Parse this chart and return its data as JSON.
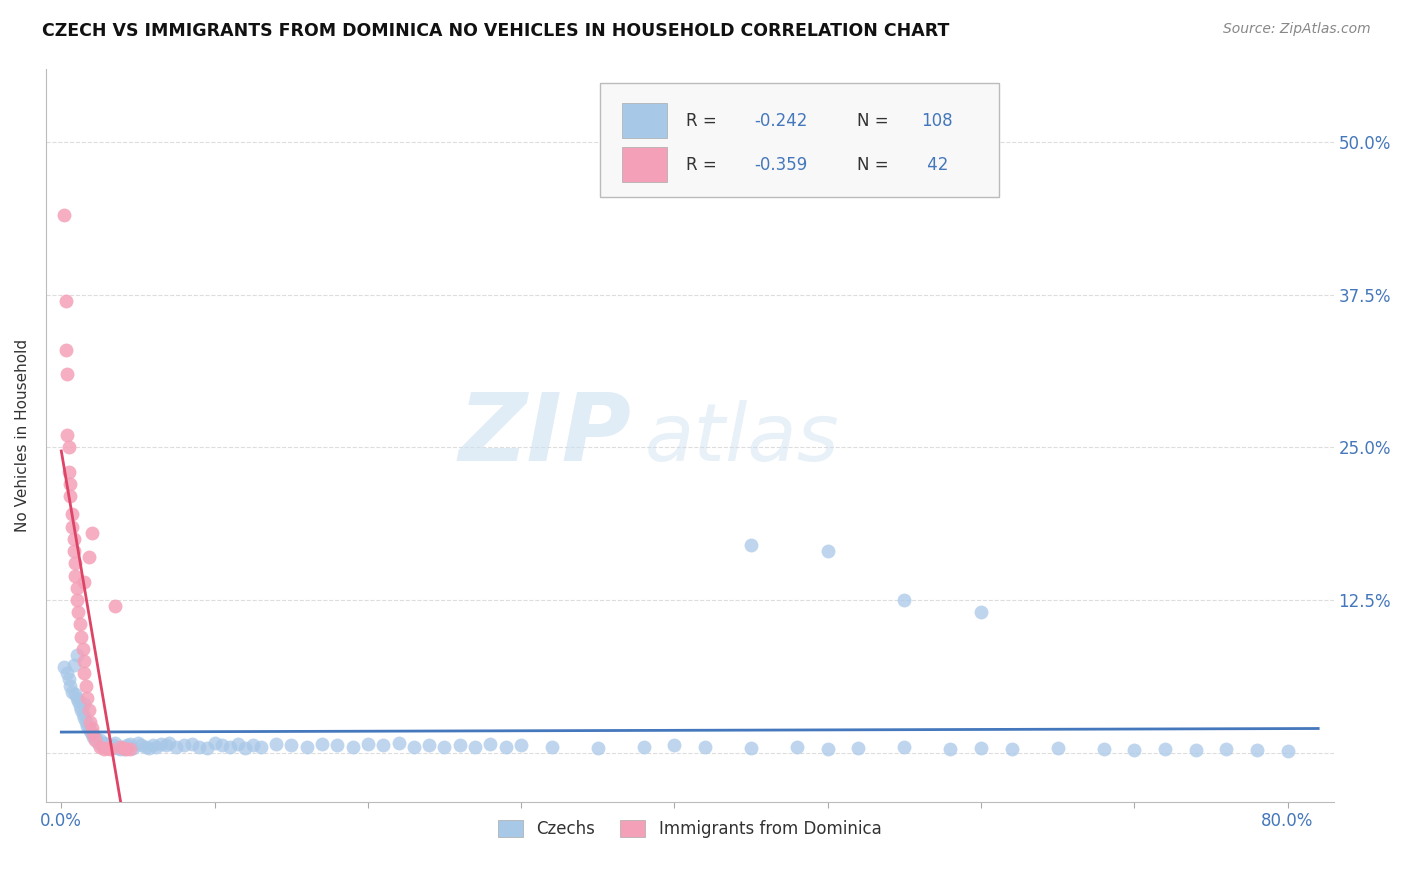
{
  "title": "CZECH VS IMMIGRANTS FROM DOMINICA NO VEHICLES IN HOUSEHOLD CORRELATION CHART",
  "source": "Source: ZipAtlas.com",
  "ylabel": "No Vehicles in Household",
  "legend_labels": [
    "Czechs",
    "Immigrants from Dominica"
  ],
  "blue_color": "#a8c8e8",
  "pink_color": "#f4a0b8",
  "blue_line_color": "#4477bb",
  "pink_line_color": "#dd4466",
  "R_blue": -0.242,
  "N_blue": 108,
  "R_pink": -0.359,
  "N_pink": 42,
  "blue_x": [
    0.002,
    0.004,
    0.005,
    0.006,
    0.007,
    0.008,
    0.009,
    0.01,
    0.01,
    0.011,
    0.012,
    0.013,
    0.014,
    0.015,
    0.015,
    0.016,
    0.017,
    0.018,
    0.019,
    0.02,
    0.021,
    0.022,
    0.023,
    0.024,
    0.025,
    0.026,
    0.027,
    0.028,
    0.029,
    0.03,
    0.031,
    0.032,
    0.033,
    0.034,
    0.035,
    0.036,
    0.037,
    0.038,
    0.039,
    0.04,
    0.041,
    0.042,
    0.043,
    0.045,
    0.047,
    0.05,
    0.052,
    0.055,
    0.057,
    0.06,
    0.062,
    0.065,
    0.068,
    0.07,
    0.075,
    0.08,
    0.085,
    0.09,
    0.095,
    0.1,
    0.105,
    0.11,
    0.115,
    0.12,
    0.125,
    0.13,
    0.14,
    0.15,
    0.16,
    0.17,
    0.18,
    0.19,
    0.2,
    0.21,
    0.22,
    0.23,
    0.24,
    0.25,
    0.26,
    0.27,
    0.28,
    0.29,
    0.3,
    0.32,
    0.35,
    0.38,
    0.4,
    0.42,
    0.45,
    0.48,
    0.5,
    0.52,
    0.55,
    0.58,
    0.6,
    0.62,
    0.65,
    0.68,
    0.7,
    0.72,
    0.74,
    0.76,
    0.78,
    0.8,
    0.45,
    0.5,
    0.55,
    0.6
  ],
  "blue_y": [
    0.07,
    0.065,
    0.06,
    0.055,
    0.05,
    0.072,
    0.048,
    0.08,
    0.045,
    0.042,
    0.038,
    0.035,
    0.032,
    0.04,
    0.028,
    0.025,
    0.022,
    0.02,
    0.018,
    0.015,
    0.013,
    0.012,
    0.01,
    0.008,
    0.01,
    0.007,
    0.006,
    0.008,
    0.005,
    0.007,
    0.006,
    0.005,
    0.004,
    0.006,
    0.008,
    0.005,
    0.004,
    0.003,
    0.005,
    0.004,
    0.003,
    0.005,
    0.006,
    0.007,
    0.004,
    0.008,
    0.006,
    0.005,
    0.004,
    0.006,
    0.005,
    0.007,
    0.006,
    0.008,
    0.005,
    0.006,
    0.007,
    0.005,
    0.004,
    0.008,
    0.006,
    0.005,
    0.007,
    0.004,
    0.006,
    0.005,
    0.007,
    0.006,
    0.005,
    0.007,
    0.006,
    0.005,
    0.007,
    0.006,
    0.008,
    0.005,
    0.006,
    0.005,
    0.006,
    0.005,
    0.007,
    0.005,
    0.006,
    0.005,
    0.004,
    0.005,
    0.006,
    0.005,
    0.004,
    0.005,
    0.003,
    0.004,
    0.005,
    0.003,
    0.004,
    0.003,
    0.004,
    0.003,
    0.002,
    0.003,
    0.002,
    0.003,
    0.002,
    0.001,
    0.17,
    0.165,
    0.125,
    0.115
  ],
  "pink_x": [
    0.002,
    0.003,
    0.003,
    0.004,
    0.004,
    0.005,
    0.005,
    0.006,
    0.006,
    0.007,
    0.007,
    0.008,
    0.008,
    0.009,
    0.009,
    0.01,
    0.01,
    0.011,
    0.012,
    0.013,
    0.014,
    0.015,
    0.015,
    0.016,
    0.017,
    0.018,
    0.019,
    0.02,
    0.021,
    0.022,
    0.025,
    0.028,
    0.03,
    0.032,
    0.035,
    0.038,
    0.04,
    0.042,
    0.045,
    0.015,
    0.018,
    0.02
  ],
  "pink_y": [
    0.44,
    0.37,
    0.33,
    0.31,
    0.26,
    0.25,
    0.23,
    0.22,
    0.21,
    0.195,
    0.185,
    0.175,
    0.165,
    0.155,
    0.145,
    0.135,
    0.125,
    0.115,
    0.105,
    0.095,
    0.085,
    0.075,
    0.065,
    0.055,
    0.045,
    0.035,
    0.025,
    0.02,
    0.015,
    0.01,
    0.005,
    0.003,
    0.004,
    0.003,
    0.12,
    0.005,
    0.004,
    0.003,
    0.003,
    0.14,
    0.16,
    0.18
  ],
  "watermark_zip": "ZIP",
  "watermark_atlas": "atlas",
  "grid_color": "#dddddd",
  "background_color": "#ffffff",
  "xlim": [
    -0.01,
    0.83
  ],
  "ylim": [
    -0.04,
    0.56
  ],
  "x_tick_positions": [
    0.0,
    0.1,
    0.2,
    0.3,
    0.4,
    0.5,
    0.6,
    0.7,
    0.8
  ],
  "x_tick_labels": [
    "0.0%",
    "",
    "",
    "",
    "",
    "",
    "",
    "",
    "80.0%"
  ],
  "y_tick_positions": [
    0.0,
    0.125,
    0.25,
    0.375,
    0.5
  ],
  "y_tick_labels_right": [
    "",
    "12.5%",
    "25.0%",
    "37.5%",
    "50.0%"
  ]
}
